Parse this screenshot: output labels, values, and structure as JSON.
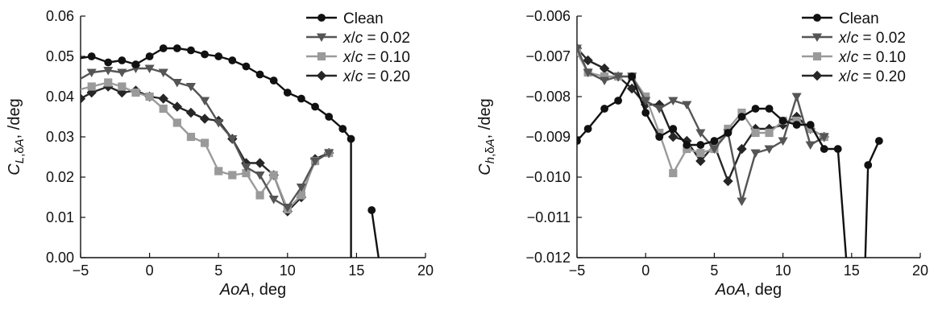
{
  "chart_data": [
    {
      "type": "line",
      "xlabel": "AoA, deg",
      "ylabel": "C_{L,δA}, /deg",
      "xlim": [
        -5,
        20
      ],
      "ylim": [
        0,
        0.06
      ],
      "xticks": [
        "−5",
        "0",
        "5",
        "10",
        "15",
        "20"
      ],
      "yticks": [
        "0.00",
        "0.01",
        "0.02",
        "0.03",
        "0.04",
        "0.05",
        "0.06"
      ],
      "grid": false,
      "legend_position": "top-right",
      "series": [
        {
          "name": "Clean",
          "color": "#111111",
          "marker": "circle",
          "points": [
            [
              -6,
              0.049
            ],
            [
              -4.2,
              0.05
            ],
            [
              -3,
              0.0485
            ],
            [
              -2,
              0.049
            ],
            [
              -1,
              0.048
            ],
            [
              0,
              0.05
            ],
            [
              1,
              0.052
            ],
            [
              2,
              0.052
            ],
            [
              3,
              0.0515
            ],
            [
              4,
              0.0505
            ],
            [
              5,
              0.05
            ],
            [
              6,
              0.049
            ],
            [
              7,
              0.0475
            ],
            [
              8,
              0.0455
            ],
            [
              9,
              0.044
            ],
            [
              10,
              0.041
            ],
            [
              11,
              0.0395
            ],
            [
              12,
              0.0375
            ],
            [
              13,
              0.035
            ],
            [
              14,
              0.032
            ],
            [
              14.6,
              0.0295
            ],
            [
              14.6,
              0
            ]
          ],
          "extra_segment": [
            [
              16.1,
              0.0118
            ],
            [
              16.6,
              0
            ]
          ]
        },
        {
          "name": "x/c = 0.02",
          "color": "#555555",
          "marker": "triangle-down",
          "points": [
            [
              -6,
              0.0425
            ],
            [
              -4.2,
              0.046
            ],
            [
              -3,
              0.0465
            ],
            [
              -2,
              0.046
            ],
            [
              -1,
              0.047
            ],
            [
              0,
              0.047
            ],
            [
              1,
              0.046
            ],
            [
              2,
              0.0435
            ],
            [
              3,
              0.0425
            ],
            [
              4,
              0.039
            ],
            [
              5,
              0.0335
            ],
            [
              6,
              0.0295
            ],
            [
              7,
              0.0225
            ],
            [
              8,
              0.0205
            ],
            [
              9,
              0.0145
            ],
            [
              10,
              0.0125
            ],
            [
              11,
              0.0175
            ],
            [
              12,
              0.024
            ],
            [
              13,
              0.026
            ]
          ]
        },
        {
          "name": "x/c = 0.10",
          "color": "#9a9a9a",
          "marker": "square",
          "points": [
            [
              -6,
              0.041
            ],
            [
              -4.2,
              0.0425
            ],
            [
              -3,
              0.0435
            ],
            [
              -2,
              0.0425
            ],
            [
              -1,
              0.041
            ],
            [
              0,
              0.04
            ],
            [
              1,
              0.037
            ],
            [
              2,
              0.0335
            ],
            [
              3,
              0.03
            ],
            [
              4,
              0.0285
            ],
            [
              5,
              0.0215
            ],
            [
              6,
              0.0205
            ],
            [
              7,
              0.021
            ],
            [
              8,
              0.0155
            ],
            [
              9,
              0.0205
            ],
            [
              10,
              0.012
            ],
            [
              11,
              0.0155
            ],
            [
              12,
              0.024
            ],
            [
              13,
              0.026
            ]
          ]
        },
        {
          "name": "x/c = 0.20",
          "color": "#262626",
          "marker": "diamond",
          "points": [
            [
              -5,
              0.0395
            ],
            [
              -4.2,
              0.041
            ],
            [
              -3,
              0.0425
            ],
            [
              -2,
              0.041
            ],
            [
              -1,
              0.0415
            ],
            [
              0,
              0.04
            ],
            [
              1,
              0.0395
            ],
            [
              2,
              0.0375
            ],
            [
              3,
              0.036
            ],
            [
              4,
              0.0345
            ],
            [
              5,
              0.034
            ],
            [
              6,
              0.0295
            ],
            [
              7,
              0.0235
            ],
            [
              8,
              0.0235
            ],
            [
              9,
              0.0205
            ],
            [
              10,
              0.0115
            ],
            [
              11,
              0.015
            ],
            [
              12,
              0.0245
            ],
            [
              13,
              0.026
            ]
          ]
        }
      ]
    },
    {
      "type": "line",
      "xlabel": "AoA, deg",
      "ylabel": "C_{h,δA}, /deg",
      "xlim": [
        -5,
        20
      ],
      "ylim": [
        -0.012,
        -0.006
      ],
      "xticks": [
        "−5",
        "0",
        "5",
        "10",
        "15",
        "20"
      ],
      "yticks": [
        "−0.012",
        "−0.011",
        "−0.010",
        "−0.009",
        "−0.008",
        "−0.007",
        "−0.006"
      ],
      "grid": false,
      "legend_position": "top-right",
      "series": [
        {
          "name": "Clean",
          "color": "#111111",
          "marker": "circle",
          "points": [
            [
              -5,
              -0.0091
            ],
            [
              -4.2,
              -0.0088
            ],
            [
              -3,
              -0.0083
            ],
            [
              -2,
              -0.0081
            ],
            [
              -1,
              -0.0075
            ],
            [
              0,
              -0.0084
            ],
            [
              1,
              -0.009
            ],
            [
              2,
              -0.0088
            ],
            [
              3,
              -0.0092
            ],
            [
              4,
              -0.0092
            ],
            [
              5,
              -0.0091
            ],
            [
              6,
              -0.0089
            ],
            [
              7,
              -0.0085
            ],
            [
              8,
              -0.0083
            ],
            [
              9,
              -0.0083
            ],
            [
              10,
              -0.0086
            ],
            [
              11,
              -0.0087
            ],
            [
              12,
              -0.0087
            ],
            [
              13,
              -0.0093
            ],
            [
              14,
              -0.0093
            ],
            [
              14.6,
              -0.012
            ]
          ],
          "extra_segment": [
            [
              16,
              -0.012
            ],
            [
              16.2,
              -0.0097
            ],
            [
              17,
              -0.0091
            ]
          ]
        },
        {
          "name": "x/c = 0.02",
          "color": "#555555",
          "marker": "triangle-down",
          "points": [
            [
              -5,
              -0.0068
            ],
            [
              -4.2,
              -0.0074
            ],
            [
              -3,
              -0.0076
            ],
            [
              -2,
              -0.0075
            ],
            [
              -1,
              -0.0075
            ],
            [
              0,
              -0.0081
            ],
            [
              1,
              -0.0083
            ],
            [
              2,
              -0.0081
            ],
            [
              3,
              -0.0082
            ],
            [
              4,
              -0.0089
            ],
            [
              5,
              -0.0093
            ],
            [
              6,
              -0.0089
            ],
            [
              7,
              -0.0106
            ],
            [
              8,
              -0.0094
            ],
            [
              9,
              -0.0093
            ],
            [
              10,
              -0.0091
            ],
            [
              11,
              -0.008
            ],
            [
              12,
              -0.0092
            ],
            [
              13,
              -0.009
            ]
          ]
        },
        {
          "name": "x/c = 0.10",
          "color": "#9a9a9a",
          "marker": "square",
          "points": [
            [
              -5,
              -0.0069
            ],
            [
              -4.2,
              -0.0074
            ],
            [
              -3,
              -0.0075
            ],
            [
              -2,
              -0.0075
            ],
            [
              -1,
              -0.0075
            ],
            [
              0,
              -0.008
            ],
            [
              1,
              -0.0089
            ],
            [
              2,
              -0.0099
            ],
            [
              3,
              -0.0093
            ],
            [
              4,
              -0.0094
            ],
            [
              5,
              -0.0093
            ],
            [
              6,
              -0.0088
            ],
            [
              7,
              -0.0084
            ],
            [
              8,
              -0.0089
            ],
            [
              9,
              -0.0089
            ],
            [
              10,
              -0.0086
            ],
            [
              11,
              -0.0086
            ],
            [
              12,
              -0.0088
            ],
            [
              13,
              -0.009
            ]
          ]
        },
        {
          "name": "x/c = 0.20",
          "color": "#262626",
          "marker": "diamond",
          "points": [
            [
              -5,
              -0.0068
            ],
            [
              -4.2,
              -0.0071
            ],
            [
              -3,
              -0.0073
            ],
            [
              -2,
              -0.0075
            ],
            [
              -1,
              -0.0078
            ],
            [
              0,
              -0.0082
            ],
            [
              1,
              -0.0082
            ],
            [
              2,
              -0.009
            ],
            [
              3,
              -0.0091
            ],
            [
              4,
              -0.0096
            ],
            [
              5,
              -0.0092
            ],
            [
              6,
              -0.0101
            ],
            [
              7,
              -0.0093
            ],
            [
              8,
              -0.0088
            ],
            [
              9,
              -0.0088
            ],
            [
              10,
              -0.0087
            ],
            [
              11,
              -0.0085
            ],
            [
              12,
              -0.0088
            ],
            [
              13,
              -0.009
            ]
          ]
        }
      ]
    }
  ]
}
